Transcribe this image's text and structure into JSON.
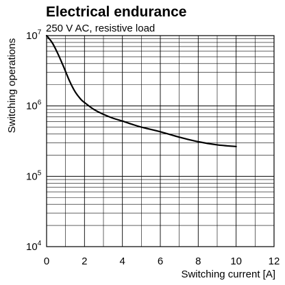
{
  "chart_data": {
    "type": "line",
    "title": "Electrical endurance",
    "subtitle": "250 V AC, resistive load",
    "xlabel": "Switching current [A]",
    "ylabel": "Switching operations",
    "xlim": [
      0,
      12
    ],
    "ylim": [
      10000,
      10000000
    ],
    "yscale": "log",
    "grid": true,
    "x_ticks": [
      0,
      2,
      4,
      6,
      8,
      10,
      12
    ],
    "x_tick_labels": [
      "0",
      "2",
      "4",
      "6",
      "8",
      "10",
      "12"
    ],
    "y_ticks": [
      {
        "value": 10000000,
        "base": "10",
        "exponent": "7"
      },
      {
        "value": 1000000,
        "base": "10",
        "exponent": "6"
      },
      {
        "value": 100000,
        "base": "10",
        "exponent": "5"
      },
      {
        "value": 10000,
        "base": "10",
        "exponent": "4"
      }
    ],
    "series": [
      {
        "color": "#000000",
        "x": [
          0.0,
          0.3,
          0.6,
          0.9,
          1.2,
          1.5,
          1.8,
          2.0,
          2.5,
          3.0,
          3.5,
          4.0,
          4.5,
          5.0,
          6.0,
          7.0,
          8.0,
          9.0,
          10.0
        ],
        "y": [
          10000000,
          7900000,
          5500000,
          3600000,
          2300000,
          1600000,
          1250000,
          1120000,
          890000,
          760000,
          670000,
          610000,
          550000,
          500000,
          430000,
          360000,
          310000,
          280000,
          265000
        ]
      }
    ]
  }
}
